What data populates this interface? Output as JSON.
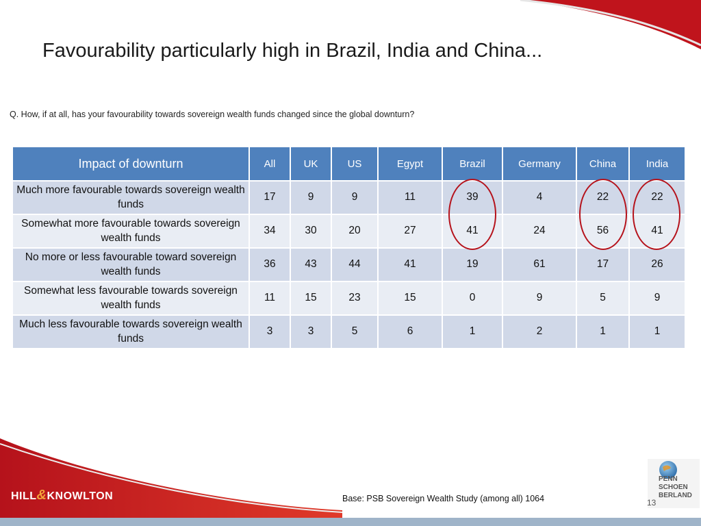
{
  "slide": {
    "title": "Favourability particularly high in Brazil, India and China...",
    "question": "Q. How, if at all, has your favourability towards sovereign wealth funds changed since the global downturn?",
    "base_note": "Base: PSB Sovereign Wealth Study (among all) 1064",
    "page_number": "13"
  },
  "table": {
    "corner_header": "Impact of downturn",
    "columns": [
      "All",
      "UK",
      "US",
      "Egypt",
      "Brazil",
      "Germany",
      "China",
      "India"
    ],
    "rows": [
      {
        "label": "Much more favourable towards sovereign wealth funds",
        "values": [
          "17",
          "9",
          "9",
          "11",
          "39",
          "4",
          "22",
          "22"
        ]
      },
      {
        "label": "Somewhat more favourable towards sovereign wealth funds",
        "values": [
          "34",
          "30",
          "20",
          "27",
          "41",
          "24",
          "56",
          "41"
        ]
      },
      {
        "label": "No more or less favourable toward sovereign wealth funds",
        "values": [
          "36",
          "43",
          "44",
          "41",
          "19",
          "61",
          "17",
          "26"
        ]
      },
      {
        "label": "Somewhat less favourable towards sovereign wealth funds",
        "values": [
          "11",
          "15",
          "23",
          "15",
          "0",
          "9",
          "5",
          "9"
        ]
      },
      {
        "label": "Much less favourable towards sovereign wealth funds",
        "values": [
          "3",
          "3",
          "5",
          "6",
          "1",
          "2",
          "1",
          "1"
        ]
      }
    ],
    "highlighted_columns": [
      "Brazil",
      "China",
      "India"
    ]
  },
  "logos": {
    "left_logo_parts": [
      "HILL",
      "&",
      "KNOWLTON"
    ],
    "right_logo_lines": [
      "PENN",
      "SCHOEN",
      "BERLAND"
    ]
  },
  "colors": {
    "header_blue": "#4f81bd",
    "accent_red": "#b5121b",
    "row_dark": "#d0d8e8",
    "row_light": "#e9edf4"
  }
}
